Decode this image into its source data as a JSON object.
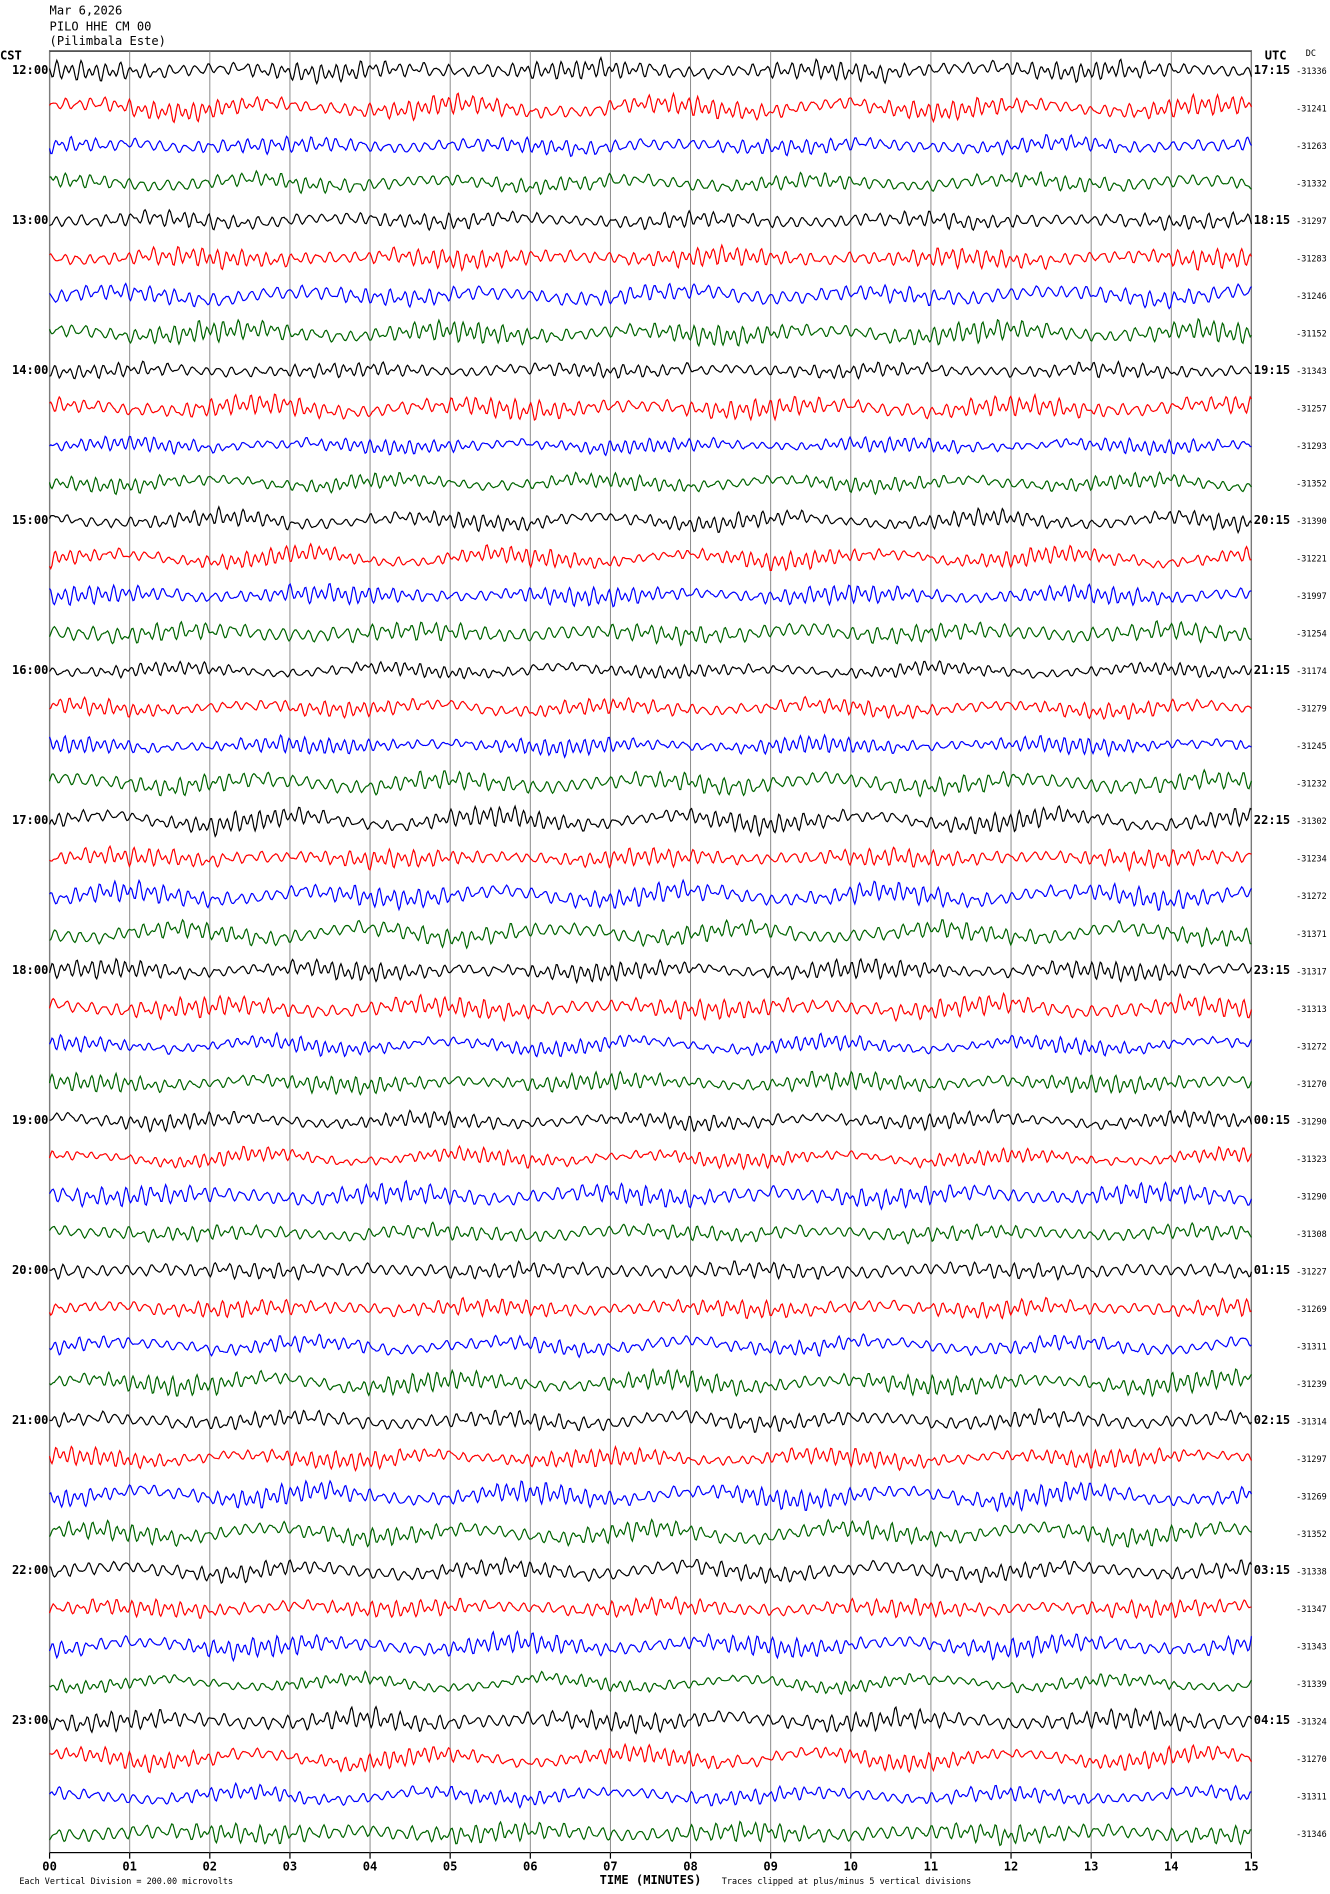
{
  "header": {
    "date": "Mar 6,2026",
    "station": "PILO HHE CM 00",
    "location": "(Pilimbala Este)"
  },
  "left_axis_title": "CST",
  "right_axis_title": "UTC",
  "dc_title": "DC",
  "cst_hours": [
    "12:00",
    "13:00",
    "14:00",
    "15:00",
    "16:00",
    "17:00",
    "18:00",
    "19:00",
    "20:00",
    "21:00",
    "22:00",
    "23:00"
  ],
  "utc_hours": [
    "17:15",
    "18:15",
    "19:15",
    "20:15",
    "21:15",
    "22:15",
    "23:15",
    "00:15",
    "01:15",
    "02:15",
    "03:15",
    "04:15"
  ],
  "dc_offsets": [
    -31336,
    -31241,
    -31263,
    -31332,
    -31297,
    -31283,
    -31246,
    -31152,
    -31343,
    -31257,
    -31293,
    -31352,
    -31390,
    -31221,
    -31997,
    -31254,
    -31174,
    -31279,
    -31245,
    -31232,
    -31302,
    -31234,
    -31272,
    -31371,
    -31317,
    -31313,
    -31272,
    -31270,
    -31290,
    -31323,
    -31290,
    -31308,
    -31227,
    -31269,
    -31311,
    -31239,
    -31314,
    -31297,
    -31269,
    -31352,
    -31338,
    -31347,
    -31343,
    -31339,
    -31324,
    -31270,
    -31311,
    -31346
  ],
  "trace_colors": [
    "#000000",
    "#ff0000",
    "#0000ff",
    "#006400"
  ],
  "x_labels": [
    "00",
    "01",
    "02",
    "03",
    "04",
    "05",
    "06",
    "07",
    "08",
    "09",
    "10",
    "11",
    "12",
    "13",
    "14",
    "15"
  ],
  "x_axis_title": "TIME (MINUTES)",
  "footer": {
    "scale": "Each Vertical Division =  200.00 microvolts",
    "clip": "Traces clipped at plus/minus 5 vertical divisions"
  }
}
